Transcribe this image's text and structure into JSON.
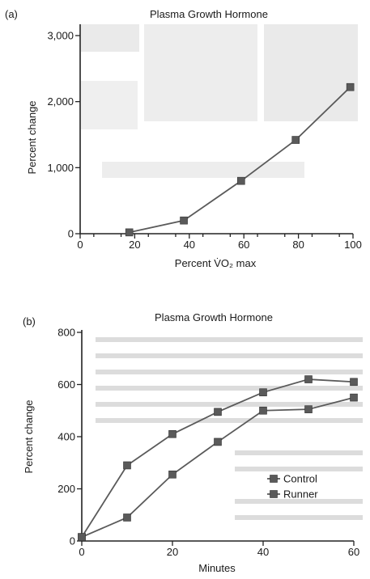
{
  "chart_data": [
    {
      "panel_label": "(a)",
      "type": "line",
      "title": "Plasma Growth Hormone",
      "xlabel": "Percent V̇O₂ max",
      "ylabel": "Percent change",
      "xlim": [
        0,
        100
      ],
      "ylim": [
        0,
        3000
      ],
      "xticks": [
        0,
        20,
        40,
        60,
        80,
        100
      ],
      "xtick_labels": [
        "0",
        "20",
        "40",
        "60",
        "80",
        "100"
      ],
      "yticks": [
        0,
        1000,
        2000,
        3000
      ],
      "ytick_labels": [
        "0",
        "1,000",
        "2,000",
        "3,000"
      ],
      "series": [
        {
          "x": [
            18,
            38,
            59,
            79,
            99
          ],
          "values": [
            20,
            200,
            800,
            1420,
            2220
          ],
          "marker": "square",
          "color": "#5a5a5a"
        }
      ]
    },
    {
      "panel_label": "(b)",
      "type": "line",
      "title": "Plasma Growth Hormone",
      "xlabel": "Minutes",
      "ylabel": "Percent change",
      "xlim": [
        0,
        60
      ],
      "ylim": [
        0,
        800
      ],
      "xticks": [
        0,
        20,
        40,
        60
      ],
      "xtick_labels": [
        "0",
        "20",
        "40",
        "60"
      ],
      "yticks": [
        0,
        200,
        400,
        600,
        800
      ],
      "ytick_labels": [
        "0",
        "200",
        "400",
        "600",
        "800"
      ],
      "legend_position": "right",
      "series": [
        {
          "name": "Control",
          "x": [
            0,
            10,
            20,
            30,
            40,
            50,
            60
          ],
          "values": [
            15,
            90,
            255,
            380,
            500,
            505,
            550
          ],
          "marker": "square",
          "color": "#5a5a5a"
        },
        {
          "name": "Runner",
          "x": [
            0,
            10,
            20,
            30,
            40,
            50,
            60
          ],
          "values": [
            15,
            290,
            410,
            495,
            570,
            620,
            610
          ],
          "marker": "square",
          "color": "#5a5a5a"
        }
      ]
    }
  ]
}
